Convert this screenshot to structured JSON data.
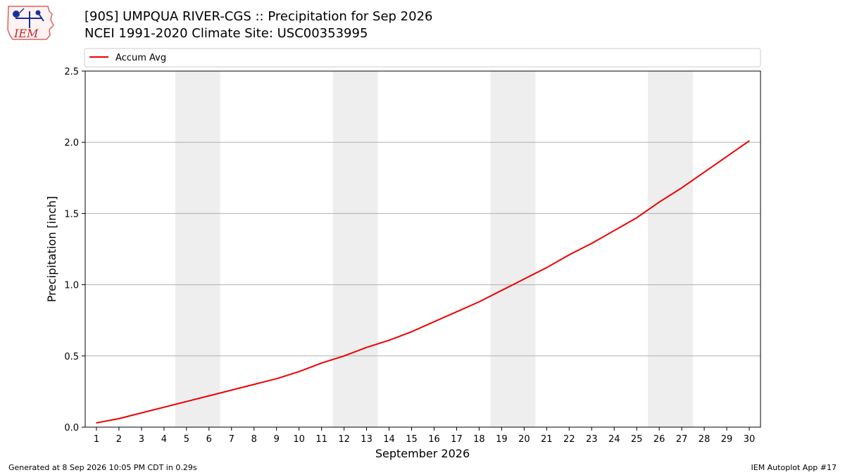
{
  "header": {
    "logo_text": "IEM",
    "title_line1": "[90S] UMPQUA RIVER-CGS :: Precipitation for Sep 2026",
    "title_line2": "NCEI 1991-2020 Climate Site: USC00353995"
  },
  "footer": {
    "generated": "Generated at 8 Sep 2026 10:05 PM CDT in 0.29s",
    "app": "IEM Autoplot App #17"
  },
  "colors": {
    "series": "#ee0000",
    "weekend_band": "#eeeeee",
    "grid": "#b0b0b0"
  },
  "chart_data": {
    "type": "line",
    "title": "[90S] UMPQUA RIVER-CGS :: Precipitation for Sep 2026",
    "subtitle": "NCEI 1991-2020 Climate Site: USC00353995",
    "xlabel": "September 2026",
    "ylabel": "Precipitation [inch]",
    "xlim": [
      0.5,
      30.5
    ],
    "ylim": [
      0,
      2.5
    ],
    "yticks": [
      0.0,
      0.5,
      1.0,
      1.5,
      2.0,
      2.5
    ],
    "ytick_labels": [
      "0.0",
      "0.5",
      "1.0",
      "1.5",
      "2.0",
      "2.5"
    ],
    "xticks": [
      1,
      2,
      3,
      4,
      5,
      6,
      7,
      8,
      9,
      10,
      11,
      12,
      13,
      14,
      15,
      16,
      17,
      18,
      19,
      20,
      21,
      22,
      23,
      24,
      25,
      26,
      27,
      28,
      29,
      30
    ],
    "grid": "y",
    "legend_position": "top",
    "weekend_bands": [
      [
        4.5,
        6.5
      ],
      [
        11.5,
        13.5
      ],
      [
        18.5,
        20.5
      ],
      [
        25.5,
        27.5
      ]
    ],
    "x": [
      1,
      2,
      3,
      4,
      5,
      6,
      7,
      8,
      9,
      10,
      11,
      12,
      13,
      14,
      15,
      16,
      17,
      18,
      19,
      20,
      21,
      22,
      23,
      24,
      25,
      26,
      27,
      28,
      29,
      30
    ],
    "series": [
      {
        "name": "Accum Avg",
        "values": [
          0.03,
          0.06,
          0.1,
          0.14,
          0.18,
          0.22,
          0.26,
          0.3,
          0.34,
          0.39,
          0.45,
          0.5,
          0.56,
          0.61,
          0.67,
          0.74,
          0.81,
          0.88,
          0.96,
          1.04,
          1.12,
          1.21,
          1.29,
          1.38,
          1.47,
          1.58,
          1.68,
          1.79,
          1.9,
          2.01
        ]
      }
    ]
  }
}
